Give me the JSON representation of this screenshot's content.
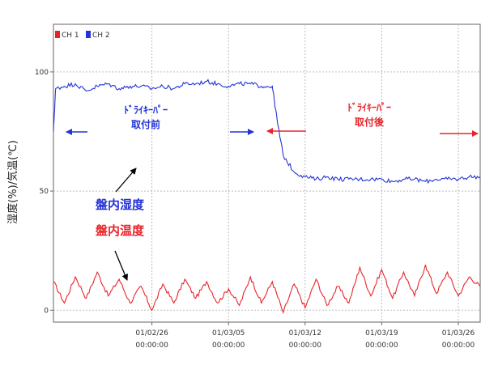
{
  "chart_data": {
    "type": "line",
    "title": "",
    "ylabel": "湿度(%)/気温(℃)",
    "xlabel": "",
    "ylim": [
      -5,
      120
    ],
    "xlim": [
      "2001-02-17",
      "2001-03-28"
    ],
    "grid": true,
    "legend": {
      "position": "top-left",
      "entries": [
        "CH 1",
        "CH 2"
      ]
    },
    "y_ticks": [
      0,
      50,
      100
    ],
    "x_ticks": [
      {
        "date": "2001-02-26",
        "date_label": "01/02/26",
        "time_label": "00:00:00"
      },
      {
        "date": "2001-03-05",
        "date_label": "01/03/05",
        "time_label": "00:00:00"
      },
      {
        "date": "2001-03-12",
        "date_label": "01/03/12",
        "time_label": "00:00:00"
      },
      {
        "date": "2001-03-19",
        "date_label": "01/03/19",
        "time_label": "00:00:00"
      },
      {
        "date": "2001-03-26",
        "date_label": "01/03/26",
        "time_label": "00:00:00"
      }
    ],
    "series": [
      {
        "name": "CH 1",
        "color": "#e8242a",
        "points": [
          [
            "2001-02-17",
            12
          ],
          [
            "2001-02-18",
            3
          ],
          [
            "2001-02-19",
            14
          ],
          [
            "2001-02-20",
            5
          ],
          [
            "2001-02-21",
            16
          ],
          [
            "2001-02-22",
            6
          ],
          [
            "2001-02-23",
            13
          ],
          [
            "2001-02-24",
            3
          ],
          [
            "2001-02-25",
            10
          ],
          [
            "2001-02-26",
            0
          ],
          [
            "2001-02-27",
            11
          ],
          [
            "2001-02-28",
            3
          ],
          [
            "2001-03-01",
            13
          ],
          [
            "2001-03-02",
            5
          ],
          [
            "2001-03-03",
            12
          ],
          [
            "2001-03-04",
            3
          ],
          [
            "2001-03-05",
            9
          ],
          [
            "2001-03-06",
            2
          ],
          [
            "2001-03-07",
            14
          ],
          [
            "2001-03-08",
            3
          ],
          [
            "2001-03-09",
            12
          ],
          [
            "2001-03-10",
            -1
          ],
          [
            "2001-03-11",
            11
          ],
          [
            "2001-03-12",
            1
          ],
          [
            "2001-03-13",
            13
          ],
          [
            "2001-03-14",
            2
          ],
          [
            "2001-03-15",
            10
          ],
          [
            "2001-03-16",
            3
          ],
          [
            "2001-03-17",
            18
          ],
          [
            "2001-03-18",
            6
          ],
          [
            "2001-03-19",
            17
          ],
          [
            "2001-03-20",
            5
          ],
          [
            "2001-03-21",
            16
          ],
          [
            "2001-03-22",
            6
          ],
          [
            "2001-03-23",
            19
          ],
          [
            "2001-03-24",
            7
          ],
          [
            "2001-03-25",
            16
          ],
          [
            "2001-03-26",
            6
          ],
          [
            "2001-03-27",
            14
          ],
          [
            "2001-03-28",
            10
          ]
        ]
      },
      {
        "name": "CH 2",
        "color": "#2433d6",
        "points": [
          [
            "2001-02-17",
            75
          ],
          [
            "2001-02-17.2",
            93
          ],
          [
            "2001-02-18",
            94
          ],
          [
            "2001-02-19",
            95
          ],
          [
            "2001-02-20",
            92
          ],
          [
            "2001-02-21",
            94
          ],
          [
            "2001-02-22",
            95
          ],
          [
            "2001-02-23",
            93
          ],
          [
            "2001-02-24",
            94
          ],
          [
            "2001-02-25",
            94
          ],
          [
            "2001-02-26",
            93
          ],
          [
            "2001-02-27",
            94
          ],
          [
            "2001-02-28",
            93
          ],
          [
            "2001-03-01",
            95
          ],
          [
            "2001-03-02",
            95
          ],
          [
            "2001-03-03",
            96
          ],
          [
            "2001-03-04",
            95
          ],
          [
            "2001-03-05",
            94
          ],
          [
            "2001-03-06",
            95
          ],
          [
            "2001-03-07",
            95
          ],
          [
            "2001-03-08",
            94
          ],
          [
            "2001-03-09",
            94
          ],
          [
            "2001-03-09.5",
            78
          ],
          [
            "2001-03-10",
            65
          ],
          [
            "2001-03-11",
            58
          ],
          [
            "2001-03-12",
            56
          ],
          [
            "2001-03-13",
            55
          ],
          [
            "2001-03-14",
            56
          ],
          [
            "2001-03-15",
            55
          ],
          [
            "2001-03-16",
            55
          ],
          [
            "2001-03-17",
            55
          ],
          [
            "2001-03-18",
            55
          ],
          [
            "2001-03-19",
            55
          ],
          [
            "2001-03-20",
            54
          ],
          [
            "2001-03-21",
            55
          ],
          [
            "2001-03-22",
            55
          ],
          [
            "2001-03-23",
            54
          ],
          [
            "2001-03-24",
            55
          ],
          [
            "2001-03-25",
            55
          ],
          [
            "2001-03-26",
            55
          ],
          [
            "2001-03-27",
            56
          ],
          [
            "2001-03-28",
            56
          ]
        ]
      }
    ],
    "annotations": [
      {
        "line1": "ﾄﾞﾗｲｷｰﾊﾟｰ",
        "line2": "取付前",
        "color": "#2433d6"
      },
      {
        "line1": "ﾄﾞﾗｲｷｰﾊﾟｰ",
        "line2": "取付後",
        "color": "#e8242a"
      },
      {
        "text": "盤内湿度",
        "color": "#2433d6"
      },
      {
        "text": "盤内温度",
        "color": "#e8242a"
      }
    ]
  }
}
